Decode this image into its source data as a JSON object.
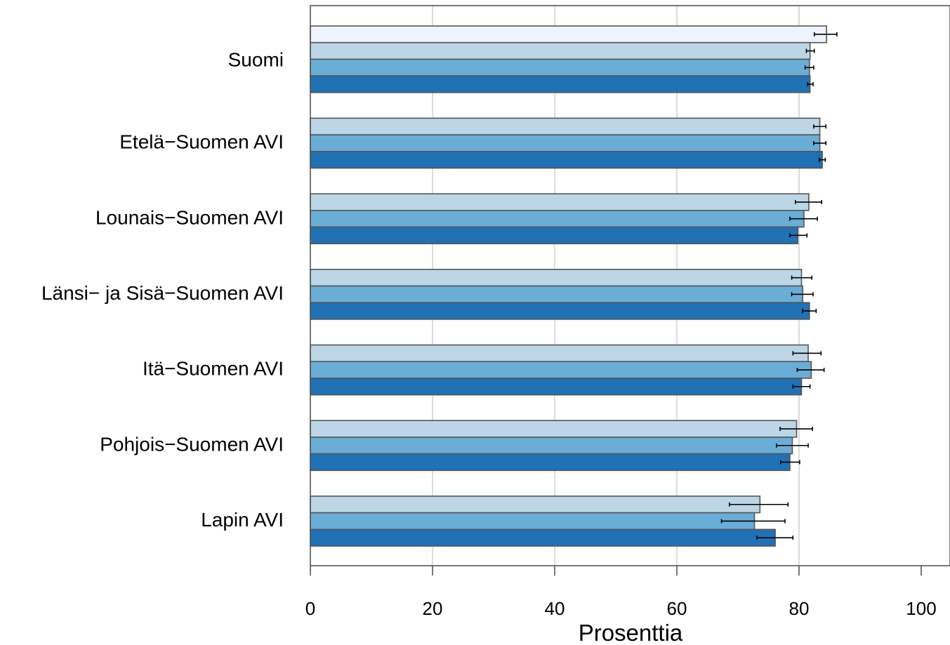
{
  "chart_data": {
    "type": "bar",
    "orientation": "horizontal",
    "title": "",
    "xlabel": "Prosenttia",
    "ylabel": "",
    "xlim": [
      0,
      100
    ],
    "x_ticks": [
      0,
      20,
      40,
      60,
      80,
      100
    ],
    "grid": true,
    "legend": "none",
    "categories": [
      "Suomi",
      "Etelä−Suomen AVI",
      "Lounais−Suomen AVI",
      "Länsi− ja Sisä−Suomen AVI",
      "Itä−Suomen AVI",
      "Pohjois−Suomen AVI",
      "Lapin AVI"
    ],
    "series": [
      {
        "color": "#eef3fd",
        "values": [
          84.5,
          null,
          null,
          null,
          null,
          null,
          null
        ],
        "error_low": [
          82.5,
          null,
          null,
          null,
          null,
          null,
          null
        ],
        "error_high": [
          86.2,
          null,
          null,
          null,
          null,
          null,
          null
        ]
      },
      {
        "color": "#bcd6e7",
        "values": [
          81.8,
          83.4,
          81.6,
          80.4,
          81.5,
          79.6,
          73.6
        ],
        "error_low": [
          81.2,
          82.4,
          79.4,
          78.8,
          79.0,
          76.9,
          68.6
        ],
        "error_high": [
          82.5,
          84.4,
          83.7,
          82.1,
          83.6,
          82.2,
          78.2
        ]
      },
      {
        "color": "#6aaed8",
        "values": [
          81.7,
          83.4,
          80.8,
          80.6,
          82.0,
          78.9,
          72.7
        ],
        "error_low": [
          81.0,
          82.4,
          78.5,
          78.8,
          79.7,
          76.3,
          67.3
        ],
        "error_high": [
          82.4,
          84.4,
          83.0,
          82.3,
          84.1,
          81.5,
          77.7
        ]
      },
      {
        "color": "#2171b5",
        "values": [
          81.8,
          83.8,
          79.8,
          81.7,
          80.4,
          78.5,
          76.1
        ],
        "error_low": [
          81.4,
          83.3,
          78.5,
          80.6,
          79.0,
          77.0,
          73.1
        ],
        "error_high": [
          82.3,
          84.3,
          81.3,
          82.8,
          81.8,
          80.1,
          79.0
        ]
      }
    ]
  }
}
